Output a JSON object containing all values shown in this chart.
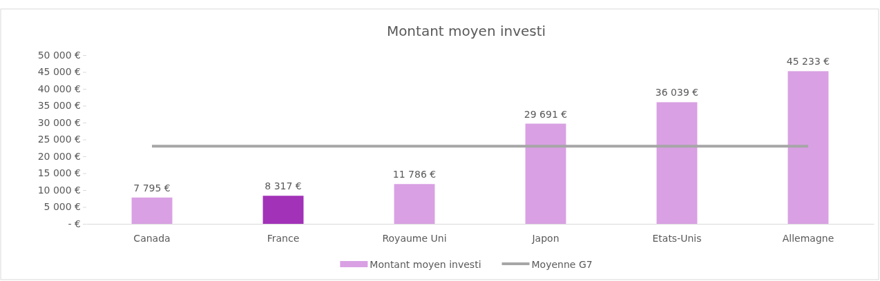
{
  "chart_data": {
    "type": "bar",
    "title": "Montant moyen investi",
    "categories": [
      "Canada",
      "France",
      "Royaume Uni",
      "Japon",
      "Etats-Unis",
      "Allemagne"
    ],
    "series": [
      {
        "name": "Montant moyen investi",
        "colors": [
          "#d9a0e3",
          "#a232b8",
          "#d9a0e3",
          "#d9a0e3",
          "#d9a0e3",
          "#d9a0e3"
        ],
        "color": "#d9a0e3",
        "values": [
          7795,
          8317,
          11786,
          29691,
          36039,
          45233
        ],
        "value_labels": [
          "7 795 €",
          "8 317 €",
          "11 786 €",
          "29 691 €",
          "36 039 €",
          "45 233 €"
        ]
      },
      {
        "name": "Moyenne G7",
        "type": "line",
        "color": "#a6a6a6",
        "values": [
          23000,
          23000,
          23000,
          23000,
          23000,
          23000
        ]
      }
    ],
    "ylim": [
      0,
      50000
    ],
    "yticks": [
      {
        "value": 0,
        "label": "-  €"
      },
      {
        "value": 5000,
        "label": "5 000 €"
      },
      {
        "value": 10000,
        "label": "10 000 €"
      },
      {
        "value": 15000,
        "label": "15 000 €"
      },
      {
        "value": 20000,
        "label": "20 000 €"
      },
      {
        "value": 25000,
        "label": "25 000 €"
      },
      {
        "value": 30000,
        "label": "30 000 €"
      },
      {
        "value": 35000,
        "label": "35 000 €"
      },
      {
        "value": 40000,
        "label": "40 000 €"
      },
      {
        "value": 45000,
        "label": "45 000 €"
      },
      {
        "value": 50000,
        "label": "50 000 €"
      }
    ],
    "grid": false,
    "legend": "bottom",
    "marker": "none",
    "line_style": "solid"
  }
}
